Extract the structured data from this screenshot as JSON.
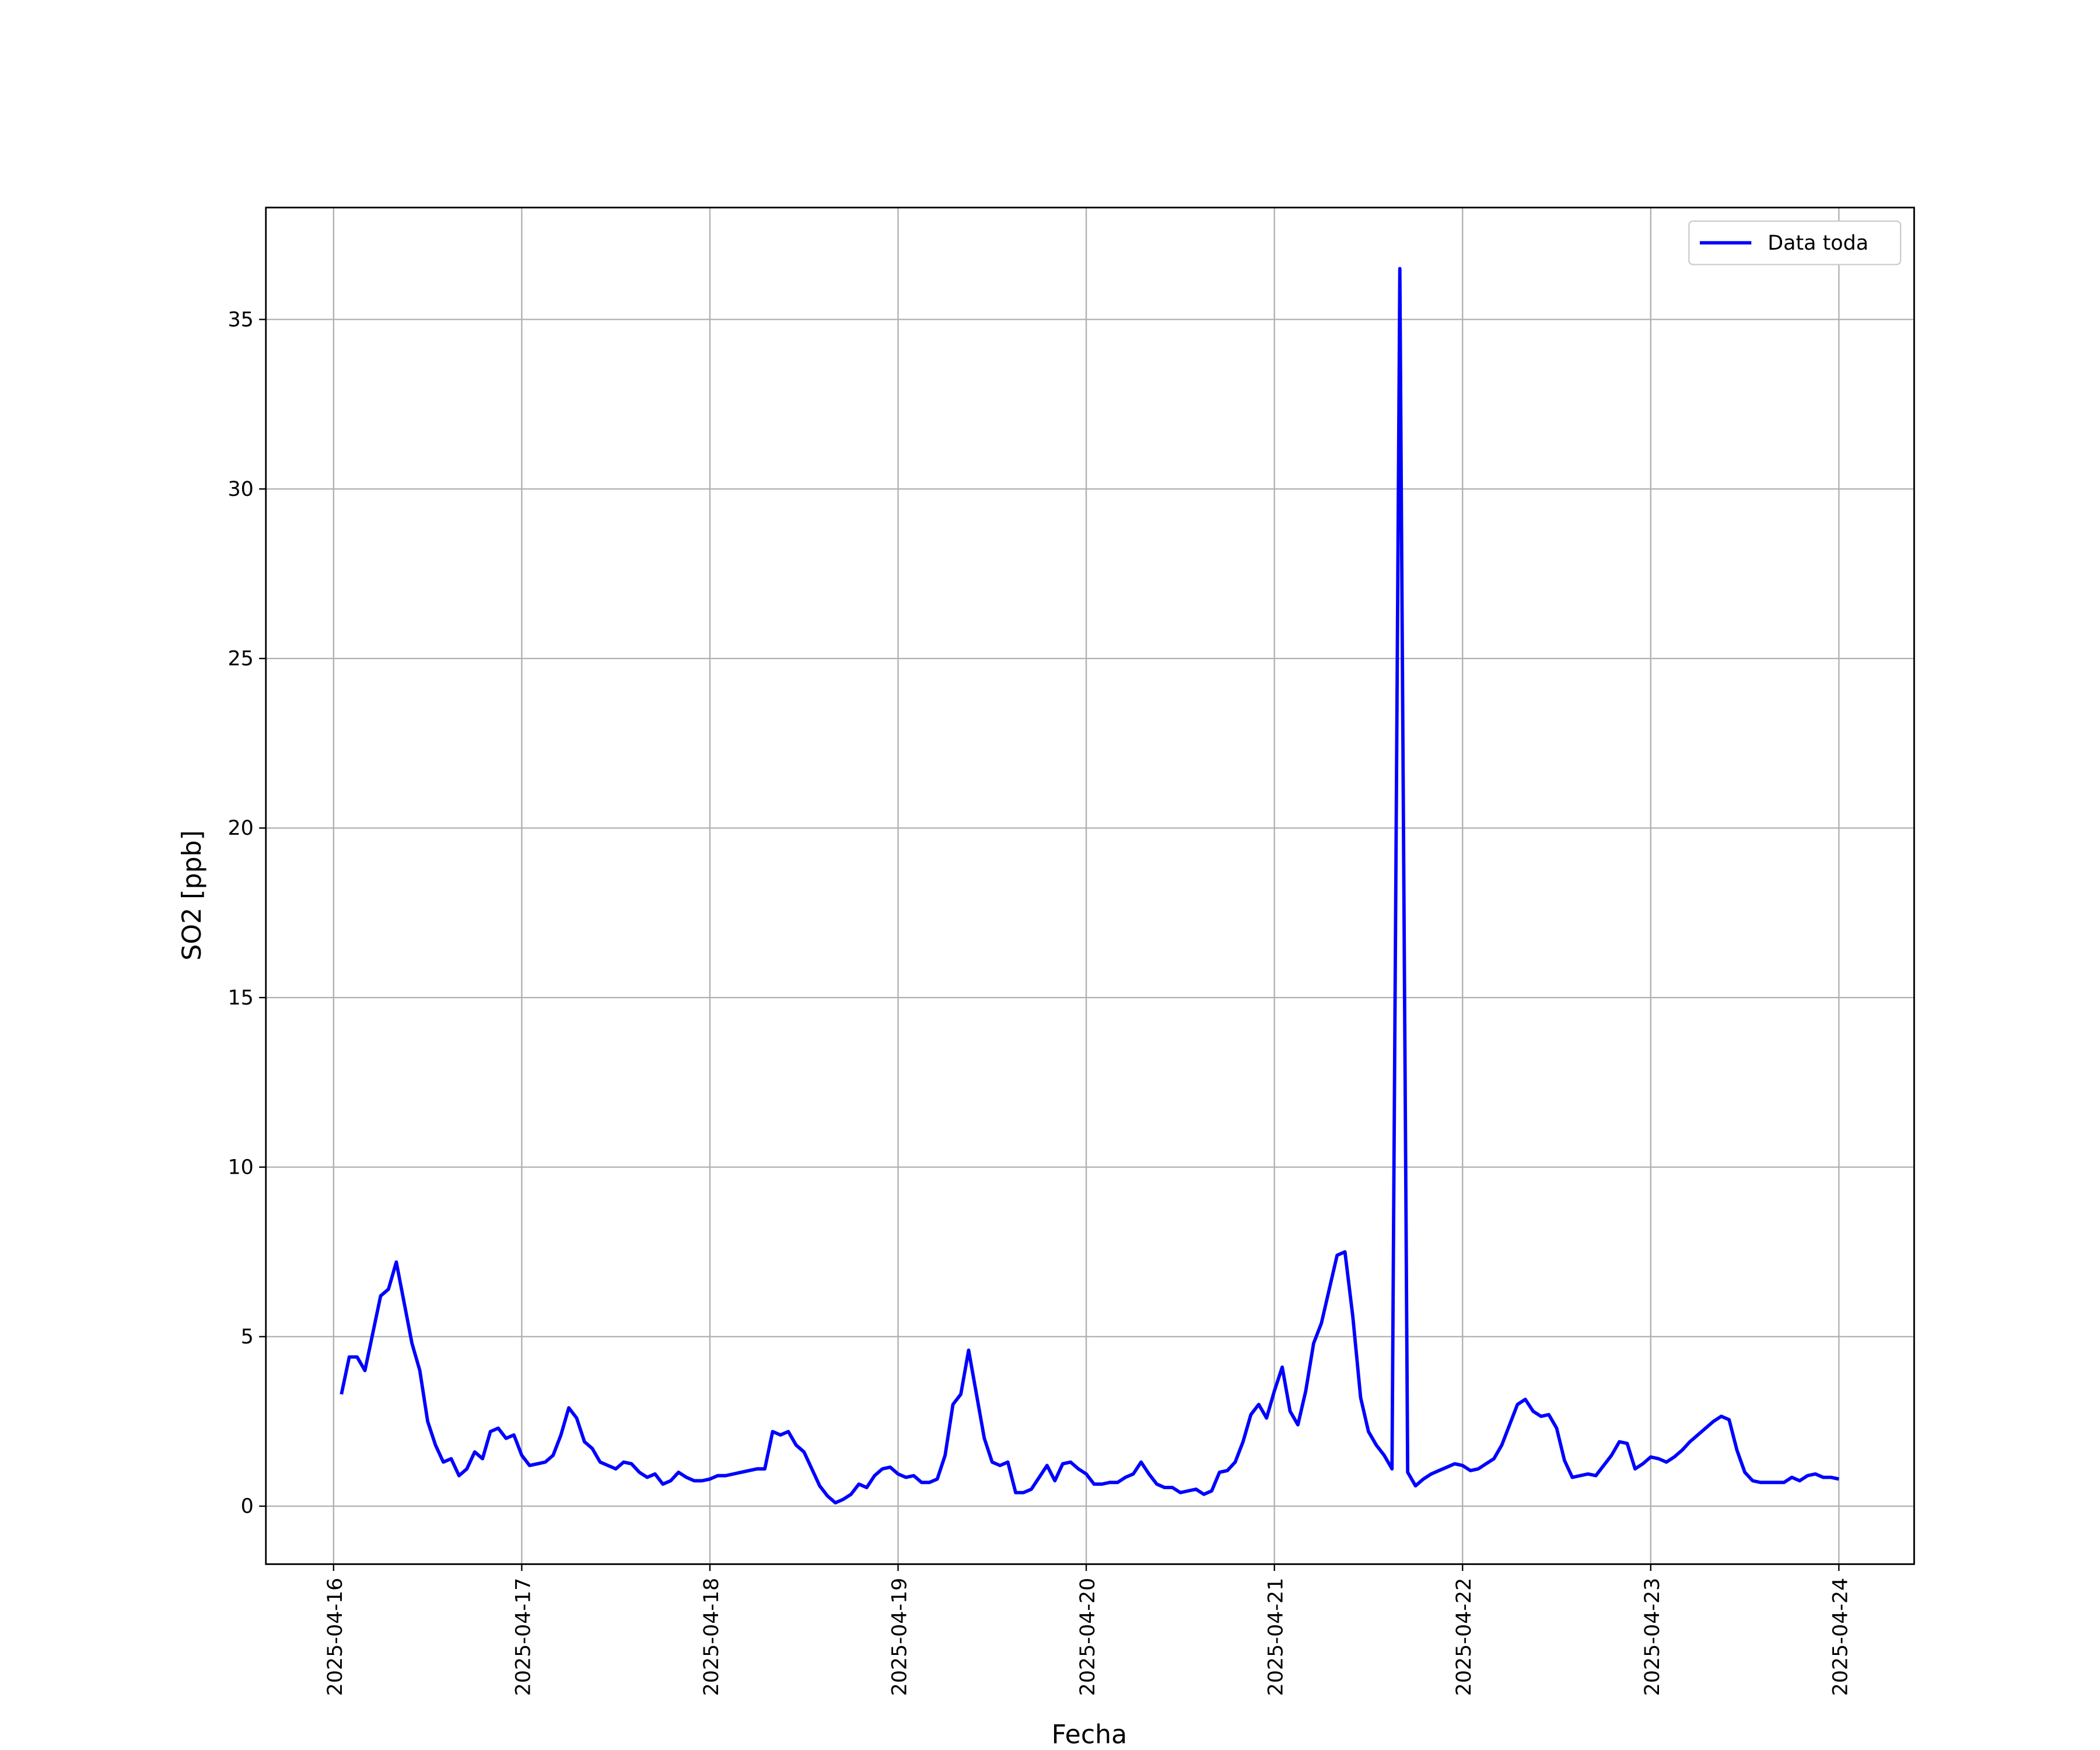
{
  "chart_data": {
    "type": "line",
    "xlabel": "Fecha",
    "ylabel": "SO2 [ppb]",
    "x": [
      "2025-04-16 01:00",
      "2025-04-16 02:00",
      "2025-04-16 03:00",
      "2025-04-16 04:00",
      "2025-04-16 05:00",
      "2025-04-16 06:00",
      "2025-04-16 07:00",
      "2025-04-16 08:00",
      "2025-04-16 09:00",
      "2025-04-16 10:00",
      "2025-04-16 11:00",
      "2025-04-16 12:00",
      "2025-04-16 13:00",
      "2025-04-16 14:00",
      "2025-04-16 15:00",
      "2025-04-16 16:00",
      "2025-04-16 17:00",
      "2025-04-16 18:00",
      "2025-04-16 19:00",
      "2025-04-16 20:00",
      "2025-04-16 21:00",
      "2025-04-16 22:00",
      "2025-04-16 23:00",
      "2025-04-17 00:00",
      "2025-04-17 01:00",
      "2025-04-17 02:00",
      "2025-04-17 03:00",
      "2025-04-17 04:00",
      "2025-04-17 05:00",
      "2025-04-17 06:00",
      "2025-04-17 07:00",
      "2025-04-17 08:00",
      "2025-04-17 09:00",
      "2025-04-17 10:00",
      "2025-04-17 11:00",
      "2025-04-17 12:00",
      "2025-04-17 13:00",
      "2025-04-17 14:00",
      "2025-04-17 15:00",
      "2025-04-17 16:00",
      "2025-04-17 17:00",
      "2025-04-17 18:00",
      "2025-04-17 19:00",
      "2025-04-17 20:00",
      "2025-04-17 21:00",
      "2025-04-17 22:00",
      "2025-04-17 23:00",
      "2025-04-18 00:00",
      "2025-04-18 01:00",
      "2025-04-18 02:00",
      "2025-04-18 03:00",
      "2025-04-18 04:00",
      "2025-04-18 05:00",
      "2025-04-18 06:00",
      "2025-04-18 07:00",
      "2025-04-18 08:00",
      "2025-04-18 09:00",
      "2025-04-18 10:00",
      "2025-04-18 11:00",
      "2025-04-18 12:00",
      "2025-04-18 13:00",
      "2025-04-18 14:00",
      "2025-04-18 15:00",
      "2025-04-18 16:00",
      "2025-04-18 17:00",
      "2025-04-18 18:00",
      "2025-04-18 19:00",
      "2025-04-18 20:00",
      "2025-04-18 21:00",
      "2025-04-18 22:00",
      "2025-04-18 23:00",
      "2025-04-19 00:00",
      "2025-04-19 01:00",
      "2025-04-19 02:00",
      "2025-04-19 03:00",
      "2025-04-19 04:00",
      "2025-04-19 05:00",
      "2025-04-19 06:00",
      "2025-04-19 07:00",
      "2025-04-19 08:00",
      "2025-04-19 09:00",
      "2025-04-19 10:00",
      "2025-04-19 11:00",
      "2025-04-19 12:00",
      "2025-04-19 13:00",
      "2025-04-19 14:00",
      "2025-04-19 15:00",
      "2025-04-19 16:00",
      "2025-04-19 17:00",
      "2025-04-19 18:00",
      "2025-04-19 19:00",
      "2025-04-19 20:00",
      "2025-04-19 21:00",
      "2025-04-19 22:00",
      "2025-04-19 23:00",
      "2025-04-20 00:00",
      "2025-04-20 01:00",
      "2025-04-20 02:00",
      "2025-04-20 03:00",
      "2025-04-20 04:00",
      "2025-04-20 05:00",
      "2025-04-20 06:00",
      "2025-04-20 07:00",
      "2025-04-20 08:00",
      "2025-04-20 09:00",
      "2025-04-20 10:00",
      "2025-04-20 11:00",
      "2025-04-20 12:00",
      "2025-04-20 13:00",
      "2025-04-20 14:00",
      "2025-04-20 15:00",
      "2025-04-20 16:00",
      "2025-04-20 17:00",
      "2025-04-20 18:00",
      "2025-04-20 19:00",
      "2025-04-20 20:00",
      "2025-04-20 21:00",
      "2025-04-20 22:00",
      "2025-04-20 23:00",
      "2025-04-21 00:00",
      "2025-04-21 01:00",
      "2025-04-21 02:00",
      "2025-04-21 03:00",
      "2025-04-21 04:00",
      "2025-04-21 05:00",
      "2025-04-21 06:00",
      "2025-04-21 07:00",
      "2025-04-21 08:00",
      "2025-04-21 09:00",
      "2025-04-21 10:00",
      "2025-04-21 11:00",
      "2025-04-21 12:00",
      "2025-04-21 13:00",
      "2025-04-21 14:00",
      "2025-04-21 15:00",
      "2025-04-21 16:00",
      "2025-04-21 17:00",
      "2025-04-21 18:00",
      "2025-04-21 19:00",
      "2025-04-21 20:00",
      "2025-04-21 21:00",
      "2025-04-21 22:00",
      "2025-04-21 23:00",
      "2025-04-22 00:00",
      "2025-04-22 01:00",
      "2025-04-22 02:00",
      "2025-04-22 03:00",
      "2025-04-22 04:00",
      "2025-04-22 05:00",
      "2025-04-22 06:00",
      "2025-04-22 07:00",
      "2025-04-22 08:00",
      "2025-04-22 09:00",
      "2025-04-22 10:00",
      "2025-04-22 11:00",
      "2025-04-22 12:00",
      "2025-04-22 13:00",
      "2025-04-22 14:00",
      "2025-04-22 15:00",
      "2025-04-22 16:00",
      "2025-04-22 17:00",
      "2025-04-22 18:00",
      "2025-04-22 19:00",
      "2025-04-22 20:00",
      "2025-04-22 21:00",
      "2025-04-22 22:00",
      "2025-04-22 23:00",
      "2025-04-23 00:00",
      "2025-04-23 01:00",
      "2025-04-23 02:00",
      "2025-04-23 03:00",
      "2025-04-23 04:00",
      "2025-04-23 05:00",
      "2025-04-23 06:00",
      "2025-04-23 07:00",
      "2025-04-23 08:00",
      "2025-04-23 09:00",
      "2025-04-23 10:00",
      "2025-04-23 11:00",
      "2025-04-23 12:00",
      "2025-04-23 13:00",
      "2025-04-23 14:00",
      "2025-04-23 15:00",
      "2025-04-23 16:00",
      "2025-04-23 17:00",
      "2025-04-23 18:00",
      "2025-04-23 19:00",
      "2025-04-23 20:00",
      "2025-04-23 21:00",
      "2025-04-23 22:00",
      "2025-04-23 23:00",
      "2025-04-24 00:00"
    ],
    "series": [
      {
        "name": "Data toda",
        "color": "#0000ff",
        "values": [
          3.3,
          4.4,
          4.4,
          4.0,
          5.1,
          6.2,
          6.4,
          7.2,
          6.0,
          4.8,
          4.0,
          2.5,
          1.8,
          1.3,
          1.4,
          0.9,
          1.1,
          1.6,
          1.4,
          2.2,
          2.3,
          2.0,
          2.1,
          1.5,
          1.2,
          1.25,
          1.3,
          1.5,
          2.1,
          2.9,
          2.6,
          1.9,
          1.7,
          1.3,
          1.2,
          1.1,
          1.3,
          1.25,
          1.0,
          0.85,
          0.95,
          0.65,
          0.75,
          1.0,
          0.85,
          0.75,
          0.75,
          0.8,
          0.9,
          0.9,
          0.95,
          1.0,
          1.05,
          1.1,
          1.1,
          2.2,
          2.1,
          2.2,
          1.8,
          1.6,
          1.1,
          0.6,
          0.3,
          0.1,
          0.2,
          0.35,
          0.65,
          0.55,
          0.9,
          1.1,
          1.15,
          0.95,
          0.85,
          0.9,
          0.7,
          0.7,
          0.8,
          1.5,
          3.0,
          3.3,
          4.6,
          3.3,
          2.0,
          1.3,
          1.2,
          1.3,
          0.4,
          0.4,
          0.5,
          0.85,
          1.2,
          0.75,
          1.25,
          1.3,
          1.1,
          0.95,
          0.65,
          0.65,
          0.7,
          0.7,
          0.85,
          0.95,
          1.3,
          0.95,
          0.65,
          0.55,
          0.55,
          0.4,
          0.45,
          0.5,
          0.35,
          0.45,
          1.0,
          1.05,
          1.3,
          1.9,
          2.7,
          3.0,
          2.6,
          3.4,
          4.1,
          2.8,
          2.4,
          3.4,
          4.8,
          5.4,
          6.4,
          7.4,
          7.5,
          5.6,
          3.2,
          2.2,
          1.8,
          1.5,
          1.1,
          36.5,
          1.0,
          0.6,
          0.8,
          0.95,
          1.05,
          1.15,
          1.25,
          1.2,
          1.05,
          1.1,
          1.25,
          1.4,
          1.8,
          2.4,
          3.0,
          3.15,
          2.8,
          2.65,
          2.7,
          2.3,
          1.35,
          0.85,
          0.9,
          0.95,
          0.9,
          1.2,
          1.5,
          1.9,
          1.85,
          1.1,
          1.25,
          1.45,
          1.4,
          1.3,
          1.45,
          1.65,
          1.9,
          2.1,
          2.3,
          2.5,
          2.65,
          2.55,
          1.65,
          1.0,
          0.75,
          0.7,
          0.7,
          0.7,
          0.7,
          0.85,
          0.75,
          0.9,
          0.95,
          0.85,
          0.85,
          0.8
        ]
      }
    ],
    "xlim": [
      "2025-04-15 15:22",
      "2025-04-24 09:36"
    ],
    "xticks": [
      "2025-04-16",
      "2025-04-17",
      "2025-04-18",
      "2025-04-19",
      "2025-04-20",
      "2025-04-21",
      "2025-04-22",
      "2025-04-23",
      "2025-04-24"
    ],
    "ylim": [
      -1.71,
      38.3
    ],
    "yticks": [
      0,
      5,
      10,
      15,
      20,
      25,
      30,
      35
    ],
    "grid": true,
    "legend": "upper right"
  }
}
